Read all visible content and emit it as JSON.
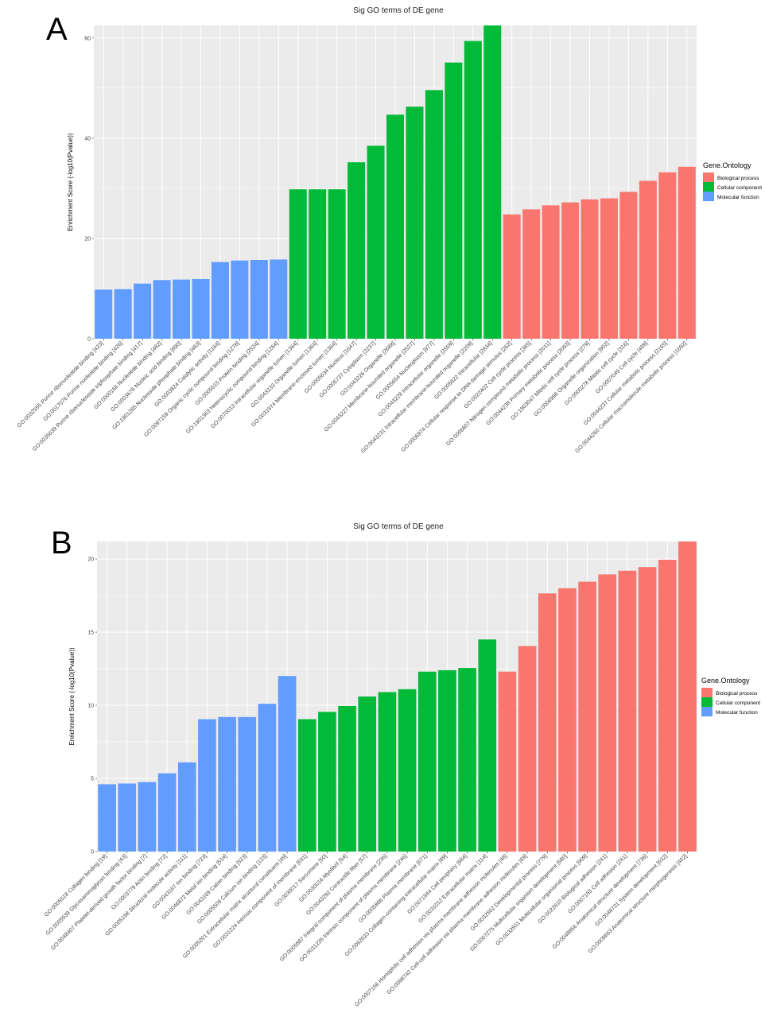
{
  "colors": {
    "Biological process": "#F8766D",
    "Cellular component": "#00BA38",
    "Molecular function": "#619CFF",
    "panel": "#EBEBEB",
    "grid": "#FFFFFF"
  },
  "chart_data": [
    {
      "panel_label": "A",
      "type": "bar",
      "title": "Sig GO terms of DE gene",
      "xlabel": "",
      "ylabel": "Enrichment Score (-log10(Pvalue))",
      "ylim": [
        0,
        62.5
      ],
      "yticks": [
        0,
        20,
        40,
        60
      ],
      "grid": true,
      "legend": {
        "title": "Gene.Ontology",
        "position": "right",
        "entries": [
          "Biological process",
          "Cellular component",
          "Molecular function"
        ]
      },
      "categories": [
        "GO:0032555 Purine ribonucleotide binding [423]",
        "GO:0017076 Purine nucleotide binding [426]",
        "GO:0035639 Purine ribonucleoside triphosphate binding [417]",
        "GO:0000166 Nucleotide binding [482]",
        "GO:0003676 Nucleic acid binding [890]",
        "GO:1901265 Nucleoside phosphate binding [483]",
        "GO:0003824 Catalytic activity [1164]",
        "GO:0097159 Organic cyclic compound binding [1278]",
        "GO:0005515 Protein binding [2524]",
        "GO:1901363 Heterocyclic compound binding [1264]",
        "GO:0070013 Intracellular organelle lumen [1364]",
        "GO:0043233 Organelle lumen [1364]",
        "GO:0031974 Membrane-enclosed lumen [1364]",
        "GO:0005634 Nucleus [1647]",
        "GO:0005737 Cytoplasm [2237]",
        "GO:0043226 Organelle [2688]",
        "GO:0043227 Membrane-bounded organelle [2527]",
        "GO:0005654 Nucleoplasm [977]",
        "GO:0043229 Intracellular organelle [2559]",
        "GO:0043231 Intracellular membrane-bounded organelle [2209]",
        "GO:0005622 Intracellular [2834]",
        "GO:0006974 Cellular response to DNA damage stimulus [262]",
        "GO:0022402 Cell cycle process [385]",
        "GO:0006807 Nitrogen compound metabolic process [2011]",
        "GO:0044238 Primary metabolic process [2093]",
        "GO:1903047 Mitotic cell cycle process [279]",
        "GO:0006996 Organelle organization [902]",
        "GO:0000278 Mitotic cell cycle [316]",
        "GO:0007049 Cell cycle [499]",
        "GO:0044237 Cellular metabolic process [2165]",
        "GO:0044260 Cellular macromolecule metabolic process [1692]"
      ],
      "values": [
        9.8,
        9.9,
        11.0,
        11.7,
        11.8,
        11.9,
        15.3,
        15.6,
        15.7,
        15.8,
        29.8,
        29.8,
        29.8,
        35.2,
        38.5,
        44.7,
        46.3,
        49.6,
        55.1,
        59.4,
        62.5,
        24.8,
        25.8,
        26.6,
        27.2,
        27.8,
        28.0,
        29.3,
        31.5,
        33.2,
        34.3
      ],
      "groups": [
        "Molecular function",
        "Molecular function",
        "Molecular function",
        "Molecular function",
        "Molecular function",
        "Molecular function",
        "Molecular function",
        "Molecular function",
        "Molecular function",
        "Molecular function",
        "Cellular component",
        "Cellular component",
        "Cellular component",
        "Cellular component",
        "Cellular component",
        "Cellular component",
        "Cellular component",
        "Cellular component",
        "Cellular component",
        "Cellular component",
        "Cellular component",
        "Biological process",
        "Biological process",
        "Biological process",
        "Biological process",
        "Biological process",
        "Biological process",
        "Biological process",
        "Biological process",
        "Biological process",
        "Biological process"
      ]
    },
    {
      "panel_label": "B",
      "type": "bar",
      "title": "Sig GO terms of DE gene",
      "xlabel": "",
      "ylabel": "Enrichment Score (-log10(Pvalue))",
      "ylim": [
        0,
        21.2
      ],
      "yticks": [
        0,
        5,
        10,
        15,
        20
      ],
      "grid": true,
      "legend": {
        "title": "Gene.Ontology",
        "position": "right",
        "entries": [
          "Biological process",
          "Cellular component",
          "Molecular function"
        ]
      },
      "categories": [
        "GO:0005518 Collagen binding [19]",
        "GO:0005539 Glycosaminoglycan binding [43]",
        "GO:0048407 Platelet-derived growth factor binding [7]",
        "GO:0003779 Actin binding [72]",
        "GO:0005198 Structural molecule activity [111]",
        "GO:0043167 Ion binding [723]",
        "GO:0046872 Metal ion binding [514]",
        "GO:0043169 Cation binding [523]",
        "GO:0005509 Calcium ion binding [123]",
        "GO:0005201 Extracellular matrix structural constituent [49]",
        "GO:0031224 Intrinsic component of membrane [631]",
        "GO:0030017 Sarcomere [50]",
        "GO:0030016 Myofibril [54]",
        "GO:0043292 Contractile fiber [57]",
        "GO:0005887 Integral component of plasma membrane [236]",
        "GO:0031226 Intrinsic component of plasma membrane [246]",
        "GO:0005886 Plasma membrane [671]",
        "GO:0062023 Collagen-containing extracellular matrix [89]",
        "GO:0071944 Cell periphery [684]",
        "GO:0031012 Extracellular matrix [114]",
        "GO:0007156 Homophilic cell adhesion via plasma membrane adhesion molecules [48]",
        "GO:0098742 Cell-cell adhesion via plasma-membrane adhesion molecules [69]",
        "GO:0032502 Developmental process [779]",
        "GO:0007275 Multicellular organism development [680]",
        "GO:0032501 Multicellular organismal process [909]",
        "GO:0022610 Biological adhesion [241]",
        "GO:0007155 Cell adhesion [241]",
        "GO:0048856 Anatomical structure development [736]",
        "GO:0048731 System development [632]",
        "GO:0009653 Anatomical structure morphogenesis [402]"
      ],
      "values": [
        4.6,
        4.65,
        4.75,
        5.35,
        6.1,
        9.05,
        9.2,
        9.2,
        10.1,
        12.0,
        9.05,
        9.55,
        9.95,
        10.6,
        10.9,
        11.1,
        12.3,
        12.4,
        12.55,
        14.5,
        12.3,
        14.05,
        17.65,
        18.0,
        18.45,
        18.95,
        19.2,
        19.45,
        19.95,
        21.2
      ],
      "groups": [
        "Molecular function",
        "Molecular function",
        "Molecular function",
        "Molecular function",
        "Molecular function",
        "Molecular function",
        "Molecular function",
        "Molecular function",
        "Molecular function",
        "Molecular function",
        "Cellular component",
        "Cellular component",
        "Cellular component",
        "Cellular component",
        "Cellular component",
        "Cellular component",
        "Cellular component",
        "Cellular component",
        "Cellular component",
        "Cellular component",
        "Biological process",
        "Biological process",
        "Biological process",
        "Biological process",
        "Biological process",
        "Biological process",
        "Biological process",
        "Biological process",
        "Biological process",
        "Biological process"
      ]
    }
  ]
}
